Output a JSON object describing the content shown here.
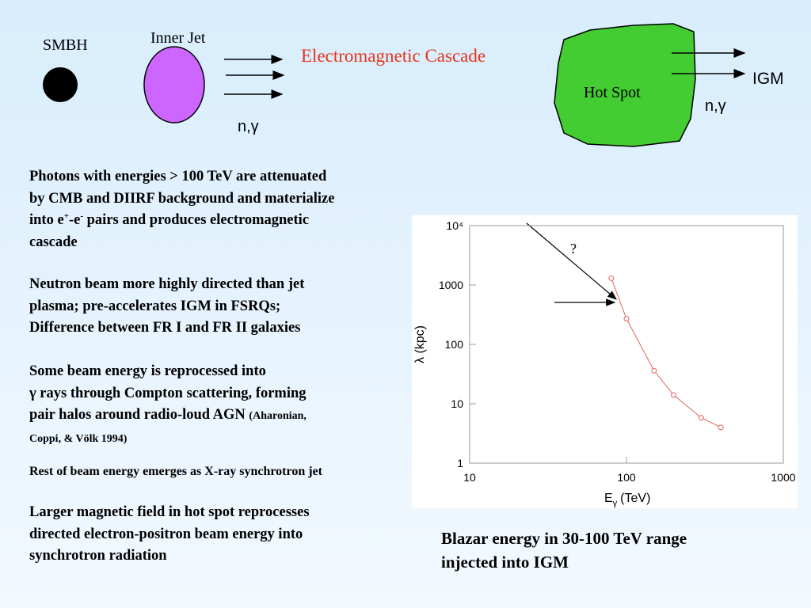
{
  "diagram": {
    "smbh": "SMBH",
    "inner_jet": "Inner Jet",
    "particles_left": "n,γ",
    "cascade": "Electromagnetic Cascade",
    "hot_spot": "Hot Spot",
    "igm": "IGM",
    "particles_right": "n,γ"
  },
  "paragraphs": [
    {
      "lines": [
        "Photons with energies > 100 TeV are attenuated",
        "by CMB and DIIRF background and materialize",
        [
          {
            "text": "into e"
          },
          {
            "text": "+",
            "style": "sup"
          },
          {
            "text": "-e"
          },
          {
            "text": "-",
            "style": "sup"
          },
          {
            "text": " pairs and produces electromagnetic"
          }
        ],
        "cascade"
      ]
    },
    {
      "lines": [
        "Neutron beam more highly directed than jet",
        "plasma; pre-accelerates IGM in FSRQs;",
        "Difference between FR I and FR II galaxies"
      ]
    },
    {
      "lines": [
        "Some beam energy is reprocessed into",
        "γ rays through Compton scattering, forming",
        [
          {
            "text": "pair halos around radio-loud AGN "
          },
          {
            "text": "(Aharonian,",
            "style": "small"
          }
        ],
        [
          {
            "text": "Coppi, & Völk 1994)",
            "style": "small"
          }
        ]
      ]
    },
    {
      "lines": [
        "Rest of beam energy emerges as X-ray synchrotron jet"
      ],
      "style": "small"
    },
    {
      "lines": [
        "Larger magnetic field in hot spot reprocesses",
        "directed electron-positron beam energy into",
        "synchrotron radiation"
      ]
    }
  ],
  "caption": [
    "Blazar energy in 30-100 TeV range",
    "injected into IGM"
  ],
  "chart_data": {
    "type": "scatter",
    "xlabel": "E",
    "xlabel_sub": "γ",
    "xlabel_unit": "(TeV)",
    "ylabel": "λ (kpc)",
    "annotation": "?",
    "x": [
      80,
      100,
      150,
      200,
      300,
      400
    ],
    "values": [
      1300,
      270,
      36,
      14,
      5.8,
      4
    ],
    "color": "#e8605a",
    "xlim": [
      10,
      1000
    ],
    "ylim": [
      1,
      10000
    ],
    "xticks": [
      10,
      100,
      1000
    ],
    "yticks": [
      1,
      10,
      100,
      1000,
      {
        "value": 10000,
        "label": "10⁴"
      }
    ],
    "xscale": "log",
    "yscale": "log",
    "grid": false
  }
}
